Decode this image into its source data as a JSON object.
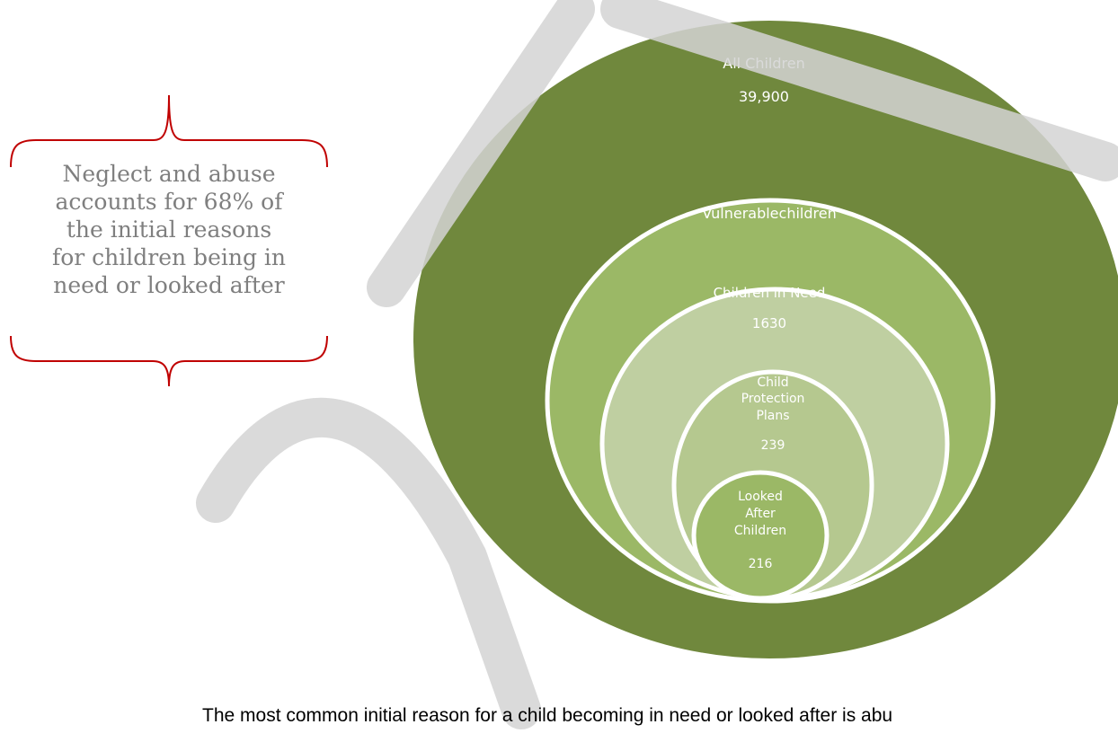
{
  "callout": {
    "lines": [
      "Neglect and abuse",
      "accounts for 68% of",
      "the initial reasons",
      "for children being in",
      "need or looked after"
    ],
    "brace_color": "#c00000"
  },
  "diagram": {
    "circles": [
      {
        "title": "All Children",
        "value": "39,900",
        "fill": "#70883d"
      },
      {
        "title": "Vulnerablechildren",
        "value": "",
        "fill": "#9bb866"
      },
      {
        "title": "Children in Need",
        "value": "1630",
        "fill": "#bfcfa1"
      },
      {
        "title_lines": [
          "Child",
          "Protection",
          "Plans"
        ],
        "value": "239",
        "fill": "#b5c88f"
      },
      {
        "title_lines": [
          "Looked",
          "After",
          "Children"
        ],
        "value": "216",
        "fill": "#9bb866"
      }
    ],
    "outline_color": "#ffffff"
  },
  "caption": "The most common initial reason for a child becoming in need or looked after is abu",
  "watermark": {
    "text": "D",
    "color": "#d4d4d4"
  }
}
